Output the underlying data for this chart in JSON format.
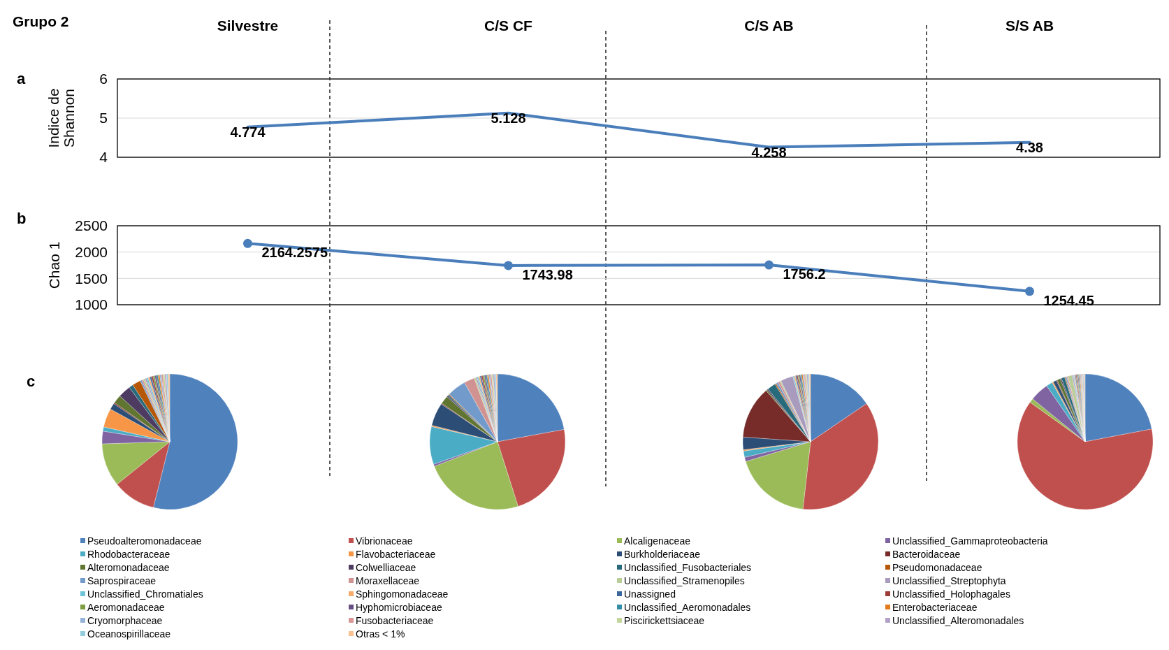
{
  "chart_data": [
    {
      "type": "line",
      "title": "Grupo 2",
      "annotations": [
        "a"
      ],
      "categories": [
        "Silvestre",
        "C/S CF",
        "C/S AB",
        "S/S AB"
      ],
      "ylabel": "Indice de Shannon",
      "ylim": [
        4,
        6
      ],
      "yticks": [
        4,
        5,
        6
      ],
      "grid": "y",
      "marker": "none",
      "data_labels": true,
      "series": [
        {
          "color": "#4a7ebb",
          "values": [
            4.774,
            5.128,
            4.258,
            4.38
          ]
        }
      ]
    },
    {
      "type": "line",
      "annotations": [
        "b"
      ],
      "tick_labels": "y",
      "ylabel": "Chao 1",
      "ylim": [
        1000,
        2500
      ],
      "yticks": [
        1000,
        1500,
        2000,
        2500
      ],
      "grid": "y",
      "marker": "circle",
      "data_labels": true,
      "series": [
        {
          "color": "#4a7ebb",
          "values": [
            2164.2575,
            1743.98,
            1756.2,
            1254.45
          ]
        }
      ]
    },
    {
      "type": "pie",
      "annotations": [
        "c"
      ],
      "legend": "bottom",
      "categories": [
        "Pseudoalteromonadaceae",
        "Vibrionaceae",
        "Alcaligenaceae",
        "Unclassified_Gammaproteobacteria",
        "Rhodobacteraceae",
        "Flavobacteriaceae",
        "Burkholderiaceae",
        "Bacteroidaceae",
        "Alteromonadaceae",
        "Colwelliaceae",
        "Unclassified_Fusobacteriales",
        "Pseudomonadaceae",
        "Saprospiraceae",
        "Moraxellaceae",
        "Unclassified_Stramenopiles",
        "Unclassified_Streptophyta",
        "Unclassified_Chromatiales",
        "Sphingomonadaceae",
        "Unassigned",
        "Unclassified_Holophagales",
        "Aeromonadaceae",
        "Hyphomicrobiaceae",
        "Unclassified_Aeromonadales",
        "Enterobacteriaceae",
        "Cryomorphaceae",
        "Fusobacteriaceae",
        "Piscirickettsiaceae",
        "Unclassified_Alteromonadales",
        "Oceanospirillaceae",
        "Otras < 1%"
      ],
      "colors": [
        "#4f81bd",
        "#c0504d",
        "#9bbb59",
        "#8064a2",
        "#4bacc6",
        "#f79646",
        "#2c4d75",
        "#772c2a",
        "#5f7530",
        "#4d3b62",
        "#276a7c",
        "#b65708",
        "#729aca",
        "#d19392",
        "#b9cd96",
        "#a99bbd",
        "#6ec3d9",
        "#f9ab6b",
        "#3a679c",
        "#9e3b38",
        "#7e9c40",
        "#664f82",
        "#358ea6",
        "#e37b1b",
        "#95b3d7",
        "#d99694",
        "#c3d69b",
        "#b3a2c7",
        "#93cddd",
        "#fac090"
      ],
      "values": [
        53.9,
        10.3,
        10.3,
        3,
        1,
        4.5,
        1.5,
        0.3,
        2,
        3,
        1,
        2,
        0.4,
        0.4,
        0.4,
        0.4,
        0.4,
        0.4,
        0.4,
        0.4,
        0.4,
        0.4,
        0.4,
        0.4,
        0.4,
        0.4,
        0.4,
        0.4,
        0.4,
        0.4
      ]
    },
    {
      "type": "pie",
      "colors": [
        "#4f81bd",
        "#c0504d",
        "#9bbb59",
        "#8064a2",
        "#4bacc6",
        "#f79646",
        "#2c4d75",
        "#772c2a",
        "#5f7530",
        "#4d3b62",
        "#276a7c",
        "#b65708",
        "#729aca",
        "#d19392",
        "#b9cd96",
        "#a99bbd",
        "#6ec3d9",
        "#f9ab6b",
        "#3a679c",
        "#9e3b38",
        "#7e9c40",
        "#664f82",
        "#358ea6",
        "#e37b1b",
        "#95b3d7",
        "#d99694",
        "#c3d69b",
        "#b3a2c7",
        "#93cddd",
        "#fac090"
      ],
      "values": [
        22.1,
        23,
        24,
        0.5,
        9,
        0.3,
        5.5,
        0.2,
        2,
        0.3,
        0.3,
        0.2,
        4.5,
        2.5,
        0.35,
        0.35,
        0.35,
        0.35,
        0.35,
        0.35,
        0.35,
        0.35,
        0.35,
        0.35,
        0.35,
        0.35,
        0.35,
        0.35,
        0.35,
        0.35
      ]
    },
    {
      "type": "pie",
      "colors": [
        "#4f81bd",
        "#c0504d",
        "#9bbb59",
        "#8064a2",
        "#4bacc6",
        "#f79646",
        "#2c4d75",
        "#772c2a",
        "#5f7530",
        "#4d3b62",
        "#276a7c",
        "#b65708",
        "#729aca",
        "#d19392",
        "#b9cd96",
        "#a99bbd",
        "#6ec3d9",
        "#f9ab6b",
        "#3a679c",
        "#9e3b38",
        "#7e9c40",
        "#664f82",
        "#358ea6",
        "#e37b1b",
        "#95b3d7",
        "#d99694",
        "#c3d69b",
        "#b3a2c7",
        "#93cddd",
        "#fac090"
      ],
      "values": [
        15.5,
        36.3,
        18.5,
        1,
        1.5,
        0.3,
        3,
        12.5,
        0.3,
        0.3,
        2,
        0.3,
        0.5,
        0.5,
        0.3,
        3,
        0.3,
        0.3,
        0.3,
        0.3,
        0.3,
        0.3,
        0.3,
        0.3,
        0.3,
        0.3,
        0.3,
        0.3,
        0.3,
        0.3
      ]
    },
    {
      "type": "pie",
      "colors": [
        "#4f81bd",
        "#c0504d",
        "#9bbb59",
        "#8064a2",
        "#4bacc6",
        "#f79646",
        "#2c4d75",
        "#772c2a",
        "#5f7530",
        "#4d3b62",
        "#276a7c",
        "#b65708",
        "#729aca",
        "#d19392",
        "#b9cd96",
        "#a99bbd",
        "#6ec3d9",
        "#f9ab6b",
        "#3a679c",
        "#9e3b38",
        "#7e9c40",
        "#664f82",
        "#358ea6",
        "#e37b1b",
        "#95b3d7",
        "#d99694",
        "#c3d69b",
        "#b3a2c7",
        "#93cddd",
        "#fac090"
      ],
      "values": [
        22,
        62.9,
        1,
        4.5,
        1.5,
        0.3,
        0.8,
        0.2,
        0.8,
        0.3,
        0.8,
        0.2,
        0.3,
        0.3,
        1,
        0.3,
        0.2,
        0.2,
        0.2,
        0.2,
        0.2,
        0.2,
        0.2,
        0.2,
        0.2,
        0.2,
        0.2,
        0.2,
        0.2,
        0.2
      ]
    }
  ]
}
